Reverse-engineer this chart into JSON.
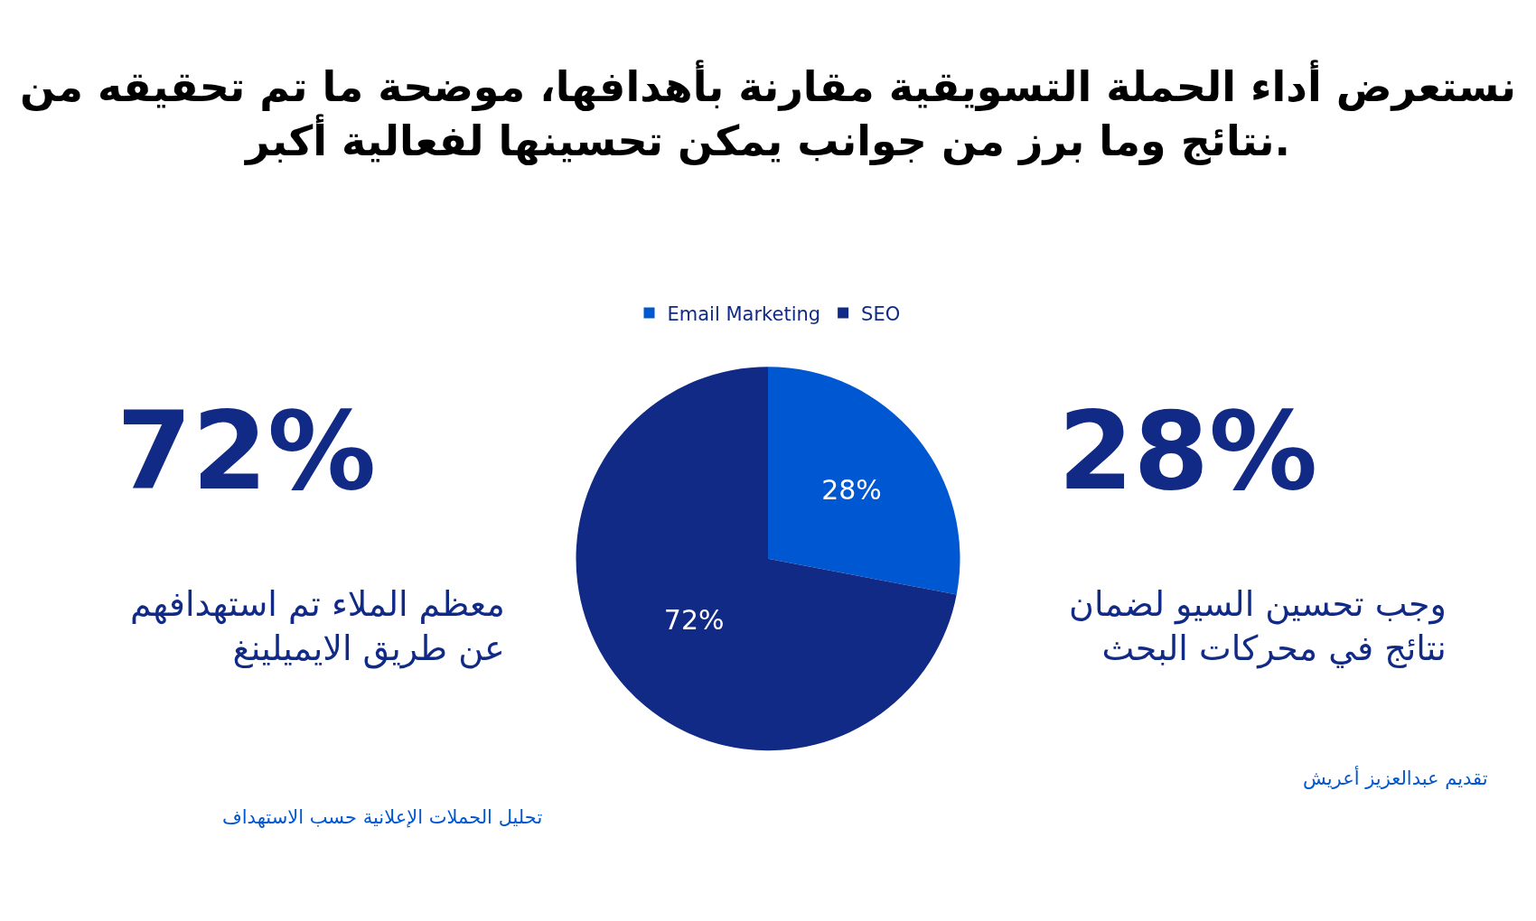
{
  "chart_data": {
    "type": "pie",
    "title": "نستعرض أداء الحملة التسويقية مقارنة بأهدافها، موضحة ما تم تحقيقه من نتائج وما برز من جوانب يمكن تحسينها لفعالية أكبر.",
    "categories": [
      "Email Marketing",
      "SEO"
    ],
    "values": [
      28,
      72
    ],
    "colors": [
      "#0057d2",
      "#112a86"
    ],
    "value_labels": [
      "28%",
      "72%"
    ],
    "legend": "top",
    "annotations": [
      "72%",
      "28%",
      "معظم الملاء تم استهدافهم عن طريق الايميلينغ",
      "وجب تحسين السيو لضمان نتائج في محركات البحث",
      "تحليل الحملات الإعلانية حسب الاستهداف",
      "تقديم عبدالعزيز أعريش"
    ]
  }
}
